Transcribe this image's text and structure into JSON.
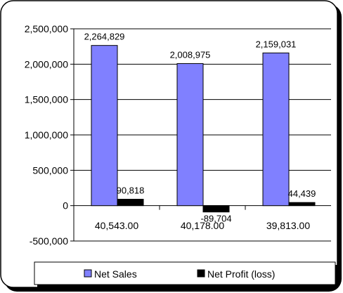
{
  "chart_data": {
    "type": "bar",
    "categories": [
      "40,543.00",
      "40,178.00",
      "39,813.00"
    ],
    "series": [
      {
        "name": "Net Sales",
        "values": [
          2264829,
          2008975,
          2159031
        ],
        "labels": [
          "2,264,829",
          "2,008,975",
          "2,159,031"
        ],
        "color": "#8080ff"
      },
      {
        "name": "Net Profit (loss)",
        "values": [
          90818,
          -89704,
          44439
        ],
        "labels": [
          "90,818",
          "-89,704",
          "44,439"
        ],
        "color": "#000000"
      }
    ],
    "ylim": [
      -500000,
      2500000
    ],
    "yticks": [
      2500000,
      2000000,
      1500000,
      1000000,
      500000,
      0,
      -500000
    ],
    "ytick_labels": [
      "2,500,000",
      "2,000,000",
      "1,500,000",
      "1,000,000",
      "500,000",
      "0",
      "-500,000"
    ],
    "grid": true,
    "legend_position": "bottom"
  }
}
